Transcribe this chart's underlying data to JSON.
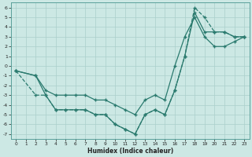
{
  "xlabel": "Humidex (Indice chaleur)",
  "bg_color": "#cce8e4",
  "grid_color": "#aacfcb",
  "line_color": "#2a7a6e",
  "xlim": [
    -0.5,
    23.5
  ],
  "ylim": [
    -7.5,
    6.5
  ],
  "xticks": [
    0,
    1,
    2,
    3,
    4,
    5,
    6,
    7,
    8,
    9,
    10,
    11,
    12,
    13,
    14,
    15,
    16,
    17,
    18,
    19,
    20,
    21,
    22,
    23
  ],
  "yticks": [
    -7,
    -6,
    -5,
    -4,
    -3,
    -2,
    -1,
    0,
    1,
    2,
    3,
    4,
    5,
    6
  ],
  "line1_x": [
    0,
    2,
    3,
    4,
    5,
    6,
    7,
    8,
    9,
    10,
    11,
    12,
    13,
    14,
    15,
    16,
    17,
    18,
    19,
    20,
    21,
    22,
    23
  ],
  "line1_y": [
    -0.5,
    -1.0,
    -3.0,
    -4.5,
    -4.5,
    -4.5,
    -4.5,
    -5.0,
    -5.0,
    -6.0,
    -6.5,
    -7.0,
    -5.0,
    -4.5,
    -5.0,
    -2.5,
    1.0,
    5.5,
    3.5,
    3.5,
    3.5,
    3.0,
    3.0
  ],
  "line2_x": [
    0,
    2,
    3,
    4,
    5,
    6,
    7,
    8,
    9,
    10,
    11,
    12,
    13,
    14,
    15,
    16,
    17,
    18,
    19,
    20,
    21,
    22,
    23
  ],
  "line2_y": [
    -0.5,
    -1.0,
    -2.5,
    -3.0,
    -3.0,
    -3.0,
    -3.0,
    -3.5,
    -3.5,
    -4.0,
    -4.5,
    -5.0,
    -3.5,
    -3.0,
    -3.5,
    0.0,
    3.0,
    5.0,
    3.0,
    2.0,
    2.0,
    2.5,
    3.0
  ],
  "line3_x": [
    0,
    2,
    3,
    4,
    5,
    6,
    7,
    8,
    9,
    10,
    11,
    12,
    13,
    14,
    15,
    16,
    17,
    18,
    19,
    20,
    21,
    22,
    23
  ],
  "line3_y": [
    -0.5,
    -3.0,
    -3.0,
    -4.5,
    -4.5,
    -4.5,
    -4.5,
    -5.0,
    -5.0,
    -6.0,
    -6.5,
    -7.0,
    -5.0,
    -4.5,
    -5.0,
    -2.5,
    1.0,
    6.0,
    5.0,
    3.5,
    3.5,
    3.0,
    3.0
  ]
}
